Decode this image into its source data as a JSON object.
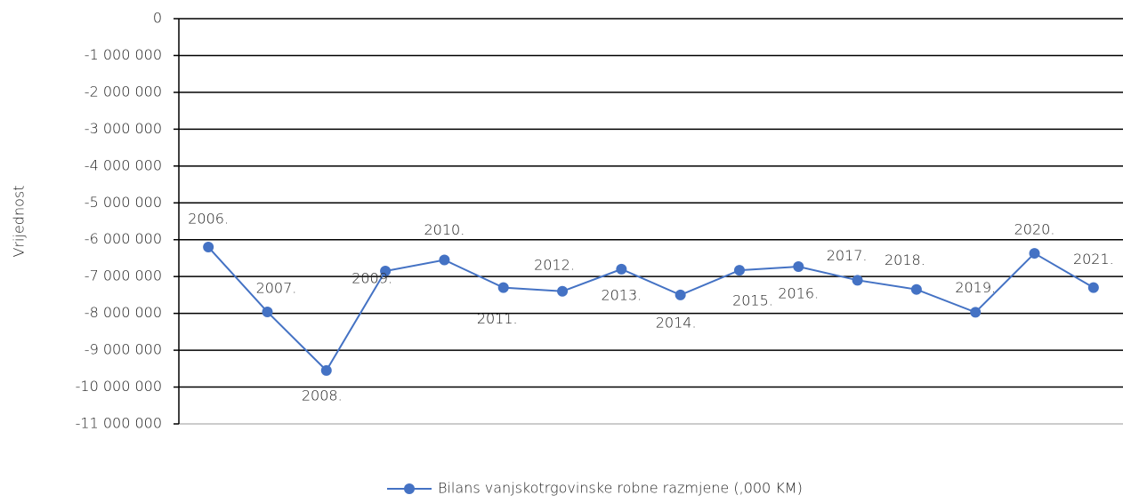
{
  "chart_data": {
    "type": "line",
    "y_axis_label": "Vrijednost",
    "categories": [
      "2006.",
      "2007.",
      "2008.",
      "2009.",
      "2010.",
      "2011.",
      "2012.",
      "2013.",
      "2014.",
      "2015.",
      "2016.",
      "2017.",
      "2018.",
      "2019.",
      "2020.",
      "2021."
    ],
    "series": [
      {
        "name": "Bilans vanjskotrgovinske robne razmjene (,000 KM)",
        "color": "#4472c4",
        "values": [
          -6200000,
          -7960000,
          -9550000,
          -6850000,
          -6550000,
          -7300000,
          -7400000,
          -6800000,
          -7500000,
          -6830000,
          -6730000,
          -7100000,
          -7350000,
          -7970000,
          -6370000,
          -7300000
        ]
      }
    ],
    "ylim": [
      -11000000,
      0
    ],
    "yticks": [
      {
        "value": -11000000,
        "label": "-11 000 000"
      },
      {
        "value": -10000000,
        "label": "-10 000 000"
      },
      {
        "value": -9000000,
        "label": "-9 000 000"
      },
      {
        "value": -8000000,
        "label": "-8 000 000"
      },
      {
        "value": -7000000,
        "label": "-7 000 000"
      },
      {
        "value": -6000000,
        "label": "-6 000 000"
      },
      {
        "value": -5000000,
        "label": "-5 000 000"
      },
      {
        "value": -4000000,
        "label": "-4 000 000"
      },
      {
        "value": -3000000,
        "label": "-3 000 000"
      },
      {
        "value": -2000000,
        "label": "-2 000 000"
      },
      {
        "value": -1000000,
        "label": "-1 000 000"
      },
      0
    ],
    "grid": true,
    "legend": "bottom"
  }
}
